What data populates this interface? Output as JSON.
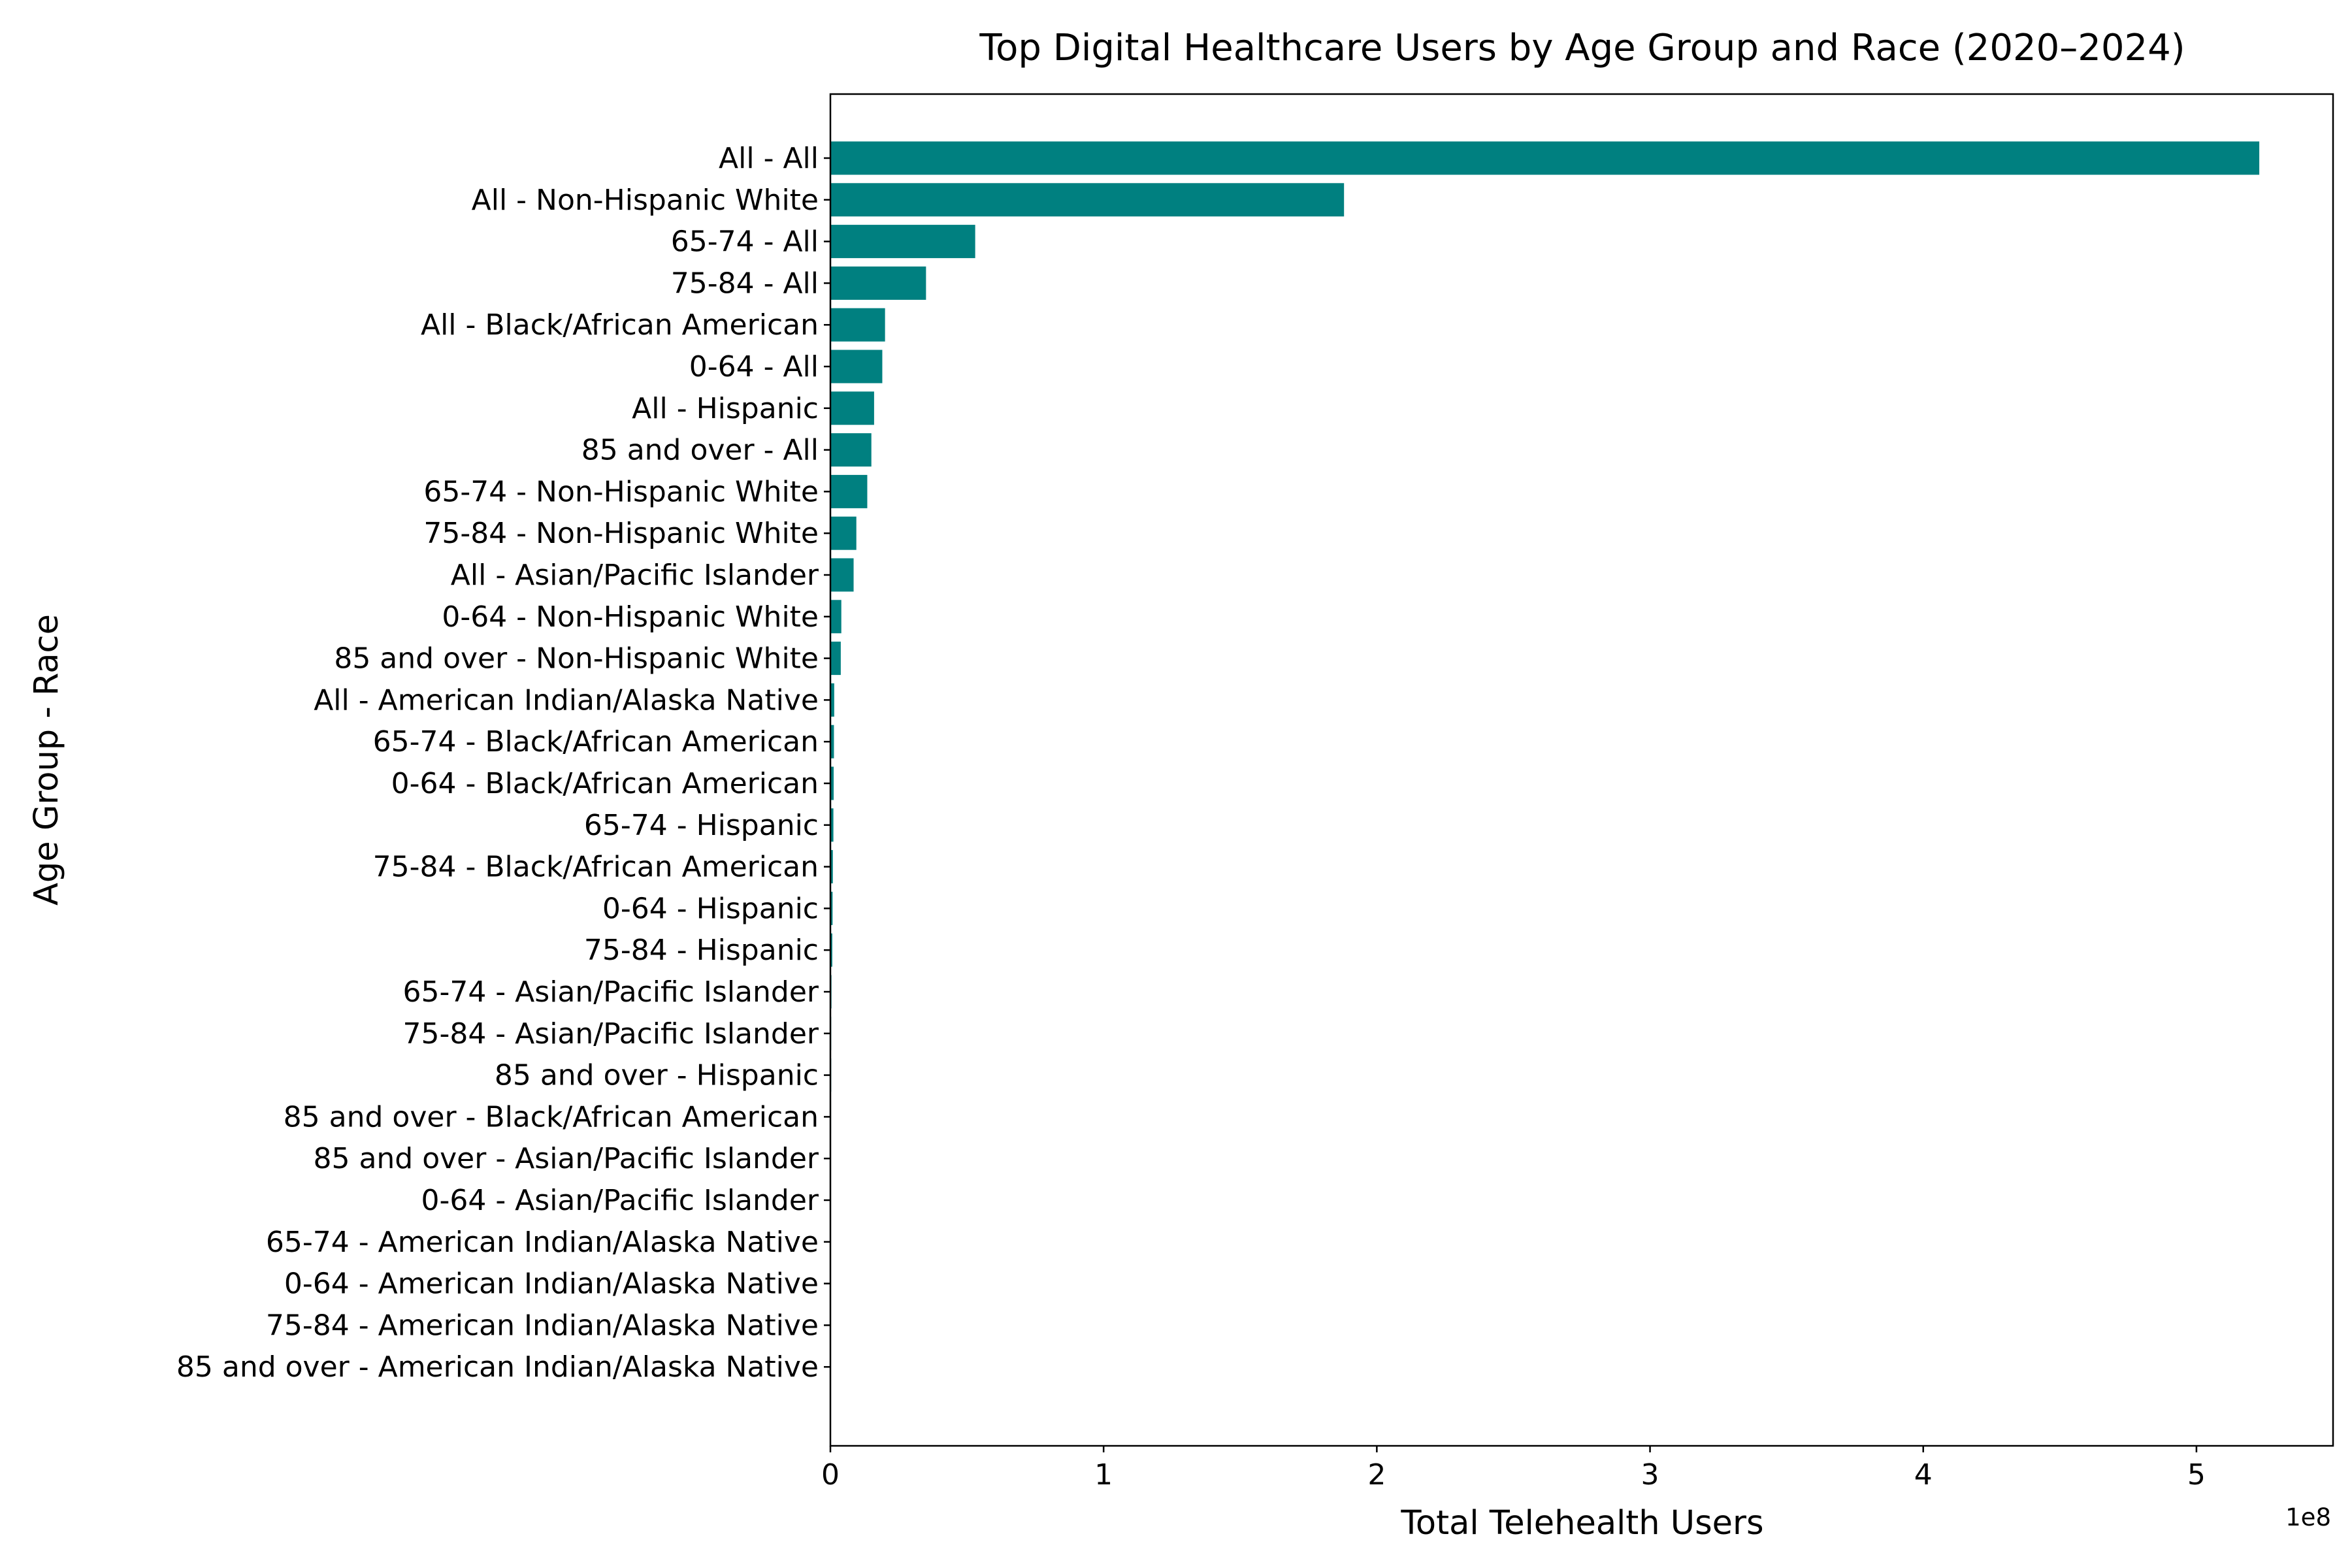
{
  "chart_data": {
    "type": "bar",
    "orientation": "horizontal",
    "title": "Top Digital Healthcare Users by Age Group and Race (2020–2024)",
    "xlabel": "Total Telehealth Users",
    "ylabel": "Age Group - Race",
    "x_scale_offset_label": "1e8",
    "x_scale_multiplier": 100000000,
    "xlim": [
      0,
      550000000
    ],
    "x_ticks": [
      0,
      1,
      2,
      3,
      4,
      5
    ],
    "grid": false,
    "bar_color": "#008080",
    "categories": [
      "All - All",
      "All - Non-Hispanic White",
      "65-74 - All",
      "75-84 - All",
      "All - Black/African American",
      "0-64 - All",
      "All - Hispanic",
      "85 and over - All",
      "65-74 - Non-Hispanic White",
      "75-84 - Non-Hispanic White",
      "All - Asian/Pacific Islander",
      "0-64 - Non-Hispanic White",
      "85 and over - Non-Hispanic White",
      "All - American Indian/Alaska Native",
      "65-74 - Black/African American",
      "0-64 - Black/African American",
      "65-74 - Hispanic",
      "75-84 - Black/African American",
      "0-64 - Hispanic",
      "75-84 - Hispanic",
      "65-74 - Asian/Pacific Islander",
      "75-84 - Asian/Pacific Islander",
      "85 and over - Hispanic",
      "85 and over - Black/African American",
      "85 and over - Asian/Pacific Islander",
      "0-64 - Asian/Pacific Islander",
      "65-74 - American Indian/Alaska Native",
      "0-64 - American Indian/Alaska Native",
      "75-84 - American Indian/Alaska Native",
      "85 and over - American Indian/Alaska Native"
    ],
    "values": [
      523000000,
      188000000,
      53000000,
      35000000,
      20000000,
      19000000,
      16000000,
      15000000,
      13500000,
      9500000,
      8500000,
      4000000,
      3800000,
      1400000,
      1300000,
      1200000,
      1100000,
      900000,
      800000,
      700000,
      400000,
      300000,
      300000,
      250000,
      150000,
      120000,
      60000,
      50000,
      40000,
      20000
    ]
  }
}
